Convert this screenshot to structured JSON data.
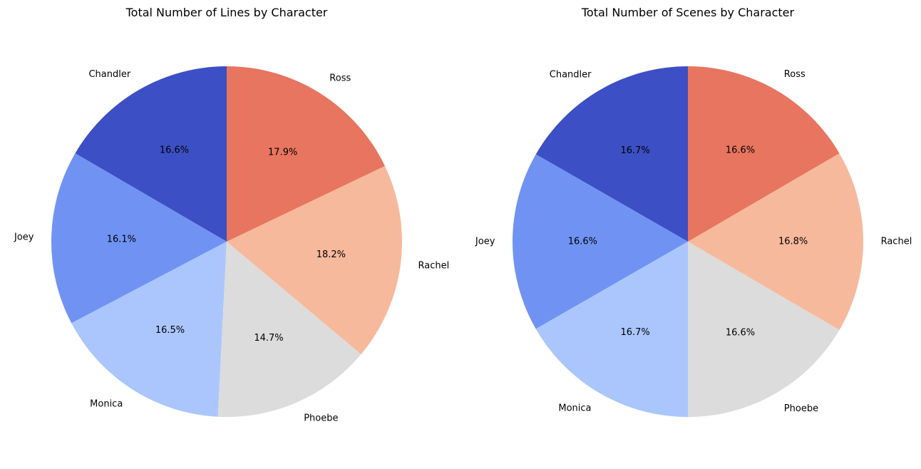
{
  "chart_data": [
    {
      "type": "pie",
      "title": "Total Number of Lines by Character",
      "start_angle_deg": 90,
      "direction": "counterclockwise",
      "categories": [
        "Chandler",
        "Joey",
        "Monica",
        "Phoebe",
        "Rachel",
        "Ross"
      ],
      "values": [
        16.6,
        16.1,
        16.5,
        14.7,
        18.2,
        17.9
      ],
      "value_labels": [
        "16.6%",
        "16.1%",
        "16.5%",
        "14.7%",
        "18.2%",
        "17.9%"
      ],
      "colors": [
        "#3d4fc4",
        "#7093f3",
        "#aac6fd",
        "#dcdcdc",
        "#f7b99c",
        "#e8755f"
      ]
    },
    {
      "type": "pie",
      "title": "Total Number of Scenes by Character",
      "start_angle_deg": 90,
      "direction": "counterclockwise",
      "categories": [
        "Chandler",
        "Joey",
        "Monica",
        "Phoebe",
        "Rachel",
        "Ross"
      ],
      "values": [
        16.7,
        16.6,
        16.7,
        16.6,
        16.8,
        16.6
      ],
      "value_labels": [
        "16.7%",
        "16.6%",
        "16.7%",
        "16.6%",
        "16.8%",
        "16.6%"
      ],
      "colors": [
        "#3d4fc4",
        "#7093f3",
        "#aac6fd",
        "#dcdcdc",
        "#f7b99c",
        "#e8755f"
      ]
    }
  ]
}
